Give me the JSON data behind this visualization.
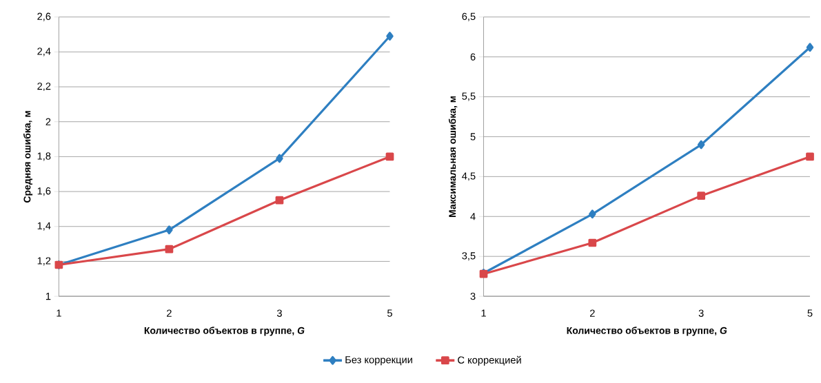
{
  "chart_data": [
    {
      "type": "line",
      "xlabel": "Количество объектов в группе, *G*",
      "ylabel": "Средняя ошибка, м",
      "categories": [
        "1",
        "2",
        "3",
        "5"
      ],
      "ylim": [
        1,
        2.6
      ],
      "yticks": [
        {
          "value": 1,
          "label": "1"
        },
        {
          "value": 1.2,
          "label": "1,2"
        },
        {
          "value": 1.4,
          "label": "1,4"
        },
        {
          "value": 1.6,
          "label": "1,6"
        },
        {
          "value": 1.8,
          "label": "1,8"
        },
        {
          "value": 2,
          "label": "2"
        },
        {
          "value": 2.2,
          "label": "2,2"
        },
        {
          "value": 2.4,
          "label": "2,4"
        },
        {
          "value": 2.6,
          "label": "2,6"
        }
      ],
      "grid": "y",
      "legend": "bottom",
      "series": [
        {
          "name": "Без коррекции",
          "color": "#2e7fc1",
          "marker": "diamond",
          "values": [
            1.18,
            1.38,
            1.79,
            2.49
          ]
        },
        {
          "name": "С коррекцией",
          "color": "#d9474a",
          "marker": "square",
          "values": [
            1.18,
            1.27,
            1.55,
            1.8
          ]
        }
      ]
    },
    {
      "type": "line",
      "xlabel": "Количество объектов в группе, *G*",
      "ylabel": "Максимальная ошибка, м",
      "categories": [
        "1",
        "2",
        "3",
        "5"
      ],
      "ylim": [
        3,
        6.5
      ],
      "yticks": [
        {
          "value": 3,
          "label": "3"
        },
        {
          "value": 3.5,
          "label": "3,5"
        },
        {
          "value": 4,
          "label": "4"
        },
        {
          "value": 4.5,
          "label": "4,5"
        },
        {
          "value": 5,
          "label": "5"
        },
        {
          "value": 5.5,
          "label": "5,5"
        },
        {
          "value": 6,
          "label": "6"
        },
        {
          "value": 6.5,
          "label": "6,5"
        }
      ],
      "grid": "y",
      "series": [
        {
          "color": "#2e7fc1",
          "marker": "diamond",
          "values": [
            3.29,
            4.03,
            4.9,
            6.12
          ]
        },
        {
          "color": "#d9474a",
          "marker": "square",
          "values": [
            3.28,
            3.67,
            4.26,
            4.75
          ]
        }
      ]
    }
  ]
}
